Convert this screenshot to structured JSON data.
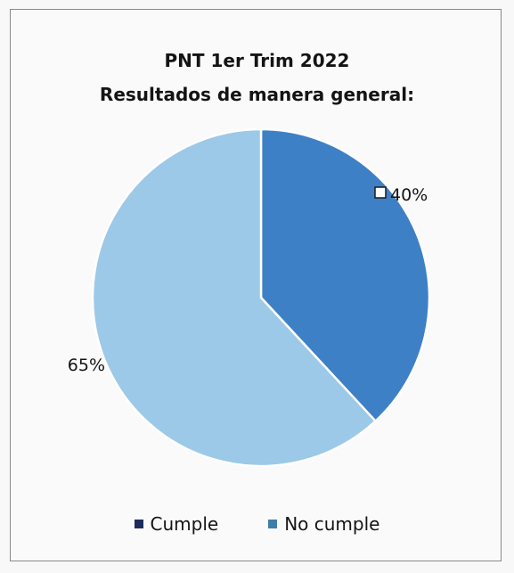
{
  "chart_data": {
    "type": "pie",
    "title": "PNT 1er Trim 2022",
    "subtitle": "Resultados de manera general:",
    "slices": [
      {
        "label": "Cumple",
        "value": 40,
        "display": "40%",
        "color": "#3e80c6",
        "legend_color": "#1c2c5c"
      },
      {
        "label": "No cumple",
        "value": 65,
        "display": "65%",
        "color": "#9cc9e8",
        "legend_color": "#3d7fa8"
      }
    ],
    "legend_position": "bottom"
  }
}
